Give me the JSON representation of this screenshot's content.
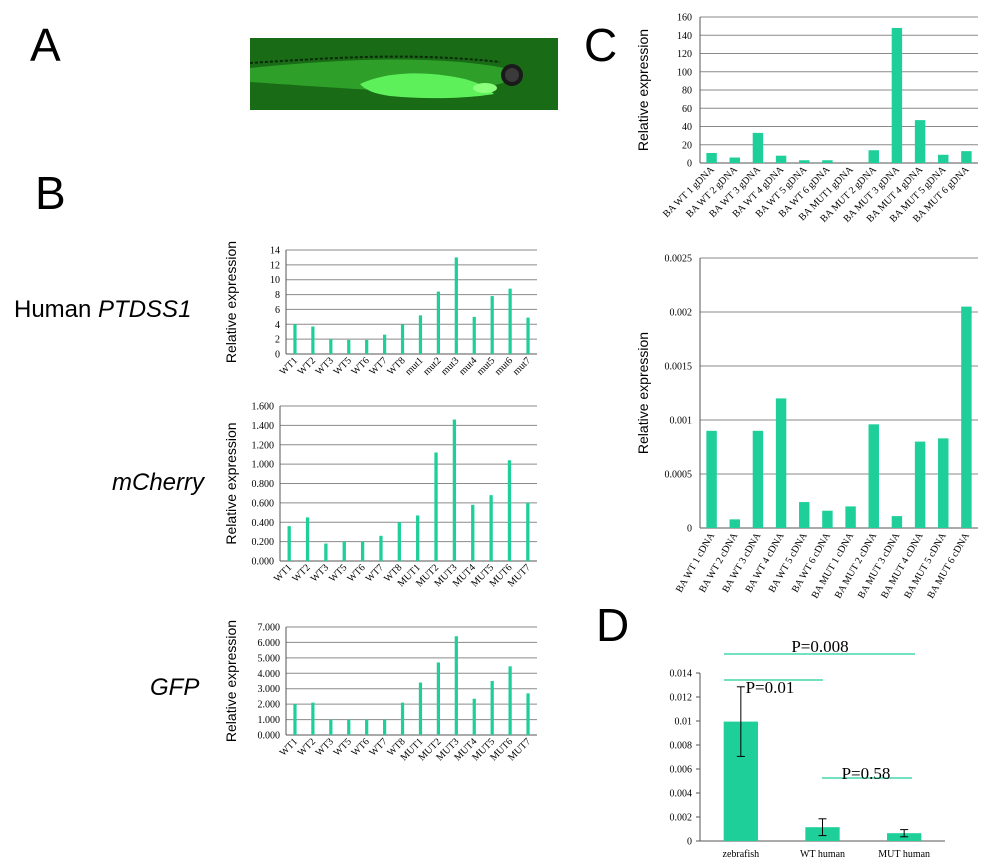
{
  "panels": {
    "a": "A",
    "b": "B",
    "c": "C",
    "d": "D"
  },
  "row_labels": {
    "ptdss1_prefix": "Human ",
    "ptdss1_gene": "PTDSS1",
    "mcherry": "mCherry",
    "gfp": "GFP"
  },
  "colors": {
    "bar": "#1ecf9a",
    "grid": "#8a8a8a",
    "fish_bg": "#1f7a1a",
    "fish_body": "#3bd63b",
    "p_line": "#1ecf9a"
  },
  "chart_data": [
    {
      "id": "ptdss1",
      "type": "bar",
      "ylabel": "Relative expression",
      "categories": [
        "WT1",
        "WT2",
        "WT3",
        "WT5",
        "WT6",
        "WT7",
        "WT8",
        "mut1",
        "mut2",
        "mut3",
        "mut4",
        "mut5",
        "mut6",
        "mut7"
      ],
      "values": [
        4.0,
        3.7,
        2.0,
        1.9,
        1.9,
        2.6,
        4.0,
        5.2,
        8.4,
        13.0,
        5.0,
        7.8,
        8.8,
        4.9
      ],
      "ylim": [
        0,
        14
      ],
      "yticks": [
        "0",
        "2",
        "4",
        "6",
        "8",
        "10",
        "12",
        "14"
      ],
      "grid": true
    },
    {
      "id": "mcherry",
      "type": "bar",
      "ylabel": "Relative expression",
      "categories": [
        "WT1",
        "WT2",
        "WT3",
        "WT5",
        "WT6",
        "WT7",
        "WT8",
        "MUT1",
        "MUT2",
        "MUT3",
        "MUT4",
        "MUT5",
        "MUT6",
        "MUT7"
      ],
      "values": [
        0.36,
        0.45,
        0.18,
        0.2,
        0.2,
        0.26,
        0.4,
        0.47,
        1.12,
        1.46,
        0.58,
        0.68,
        1.04,
        0.6
      ],
      "ylim": [
        0,
        1.6
      ],
      "yticks": [
        "0.000",
        "0.200",
        "0.400",
        "0.600",
        "0.800",
        "1.000",
        "1.200",
        "1.400",
        "1.600"
      ],
      "grid": true
    },
    {
      "id": "gfp",
      "type": "bar",
      "ylabel": "Relative expression",
      "categories": [
        "WT1",
        "WT2",
        "WT3",
        "WT5",
        "WT6",
        "WT7",
        "WT8",
        "MUT1",
        "MUT2",
        "MUT3",
        "MUT4",
        "MUT5",
        "MUT6",
        "MUT7"
      ],
      "values": [
        2.0,
        2.1,
        1.0,
        1.0,
        1.0,
        1.0,
        2.1,
        3.4,
        4.7,
        6.4,
        2.35,
        3.5,
        4.45,
        2.7
      ],
      "ylim": [
        0,
        7
      ],
      "yticks": [
        "0.000",
        "1.000",
        "2.000",
        "3.000",
        "4.000",
        "5.000",
        "6.000",
        "7.000"
      ],
      "grid": true
    },
    {
      "id": "gdna",
      "type": "bar",
      "ylabel": "Relative expression",
      "categories": [
        "BA WT 1 gDNA",
        "BA WT 2 gDNA",
        "BA WT 3 gDNA",
        "BA WT 4 gDNA",
        "BA WT 5 gDNA",
        "BA WT 6 gDNA",
        "BA MUT1 gDNA",
        "BA MUT 2 gDNA",
        "BA MUT 3 gDNA",
        "BA MUT 4 gDNA",
        "BA MUT 5 gDNA",
        "BA MUT 6 gDNA"
      ],
      "values": [
        11,
        6,
        33,
        8,
        3,
        3,
        0,
        14,
        148,
        47,
        9,
        13
      ],
      "ylim": [
        0,
        160
      ],
      "yticks": [
        "0",
        "20",
        "40",
        "60",
        "80",
        "100",
        "120",
        "140",
        "160"
      ],
      "grid": true
    },
    {
      "id": "cdna",
      "type": "bar",
      "ylabel": "Relative expression",
      "categories": [
        "BA WT 1 cDNA",
        "BA WT 2 cDNA",
        "BA WT 3 cDNA",
        "BA WT 4 cDNA",
        "BA WT 5 cDNA",
        "BA WT 6 cDNA",
        "BA MUT 1 cDNA",
        "BA MUT 2 cDNA",
        "BA MUT 3 cDNA",
        "BA MUT 4 cDNA",
        "BA MUT 5 cDNA",
        "BA MUT 6 cDNA"
      ],
      "values": [
        0.0009,
        8e-05,
        0.0009,
        0.0012,
        0.00024,
        0.00016,
        0.0002,
        0.00096,
        0.00011,
        0.0008,
        0.00083,
        0.00205
      ],
      "ylim": [
        0,
        0.0025
      ],
      "yticks": [
        "0",
        "0.0005",
        "0.001",
        "0.0015",
        "0.002",
        "0.0025"
      ],
      "grid": true
    },
    {
      "id": "d",
      "type": "bar",
      "ylabel": "",
      "categories": [
        "zebrafish",
        "WT human",
        "MUT human"
      ],
      "values": [
        0.00995,
        0.00115,
        0.00065
      ],
      "errors": [
        0.0029,
        0.0007,
        0.0003
      ],
      "ylim": [
        0,
        0.014
      ],
      "yticks": [
        "0",
        "0.002",
        "0.004",
        "0.006",
        "0.008",
        "0.01",
        "0.012",
        "0.014"
      ],
      "grid": false,
      "annotations": [
        "P=0.008",
        "P=0.01",
        "P=0.58"
      ]
    }
  ]
}
